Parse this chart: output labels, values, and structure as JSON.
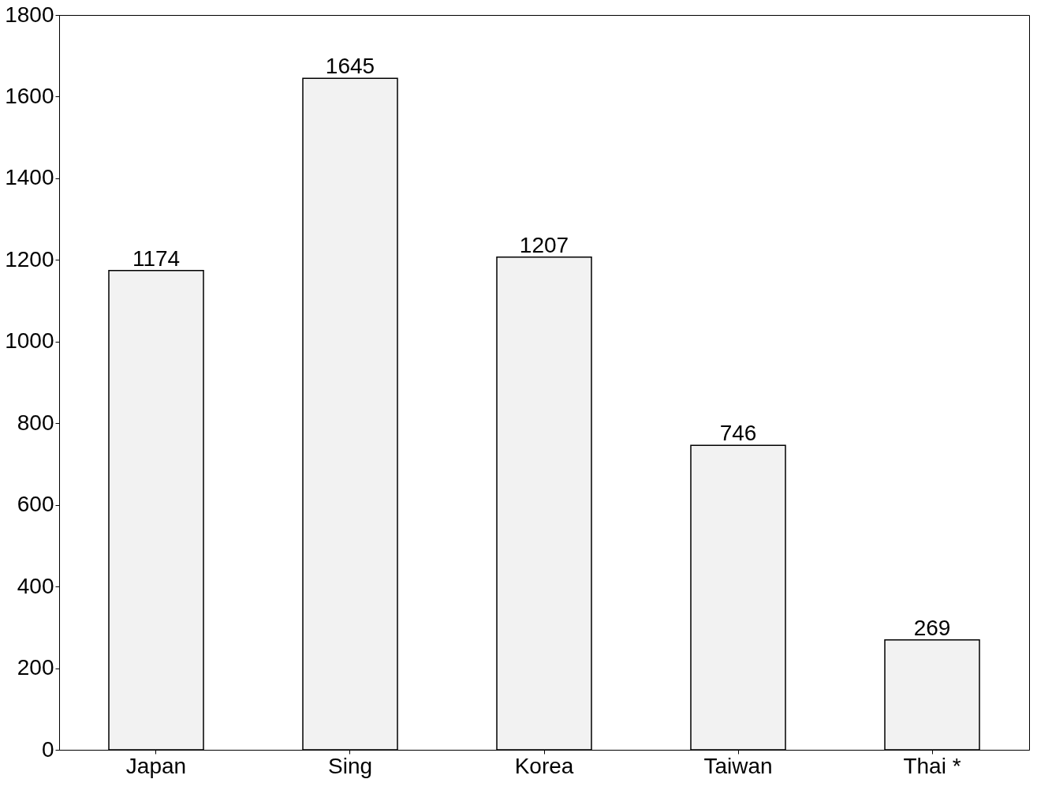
{
  "chart_data": {
    "type": "bar",
    "categories": [
      "Japan",
      "Sing",
      "Korea",
      "Taiwan",
      "Thai *"
    ],
    "values": [
      1174,
      1645,
      1207,
      746,
      269
    ],
    "color": "#f2f2f2",
    "ylim": [
      0,
      1800
    ],
    "yticks": [
      0,
      200,
      400,
      600,
      800,
      1000,
      1200,
      1400,
      1600,
      1800
    ],
    "data_labels": true,
    "grid": false
  }
}
